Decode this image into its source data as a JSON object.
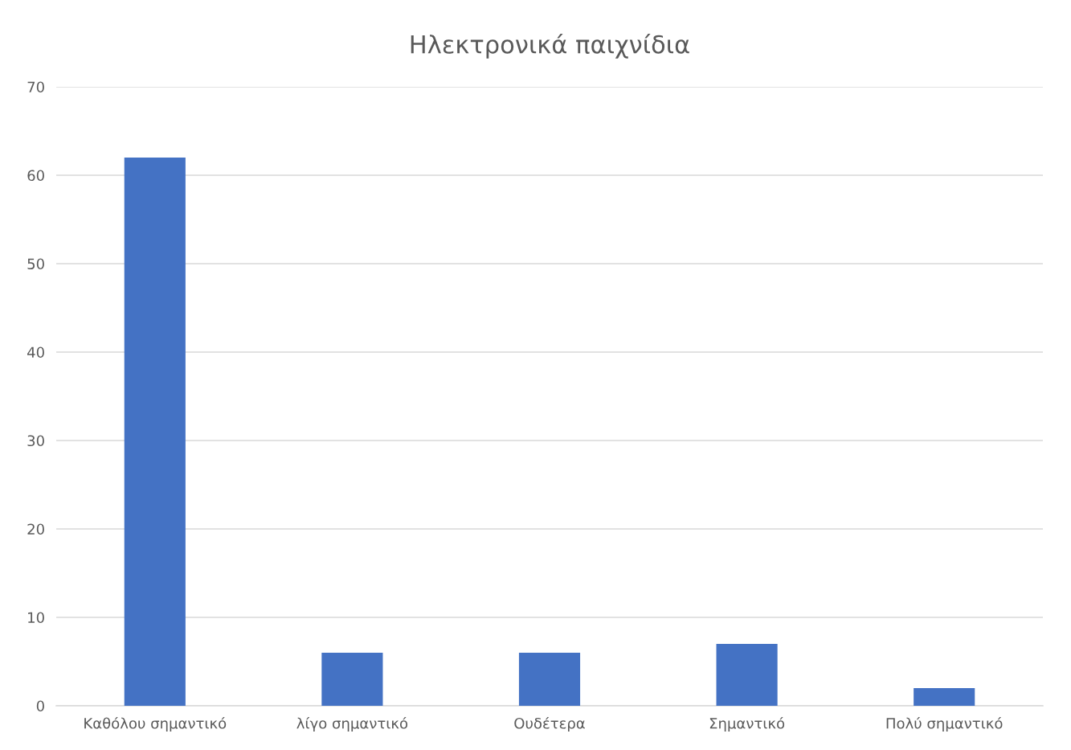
{
  "chart_data": {
    "type": "bar",
    "title": "Ηλεκτρονικά παιχνίδια",
    "categories": [
      "Καθόλου σημαντικό",
      "λίγο σημαντικό",
      "Ουδέτερα",
      "Σημαντικό",
      "Πολύ σημαντικό"
    ],
    "values": [
      62,
      6,
      6,
      7,
      2
    ],
    "color": "#4472c4",
    "ylim": [
      0,
      70
    ],
    "yticks": [
      0,
      10,
      20,
      30,
      40,
      50,
      60,
      70
    ],
    "grid": "y"
  }
}
